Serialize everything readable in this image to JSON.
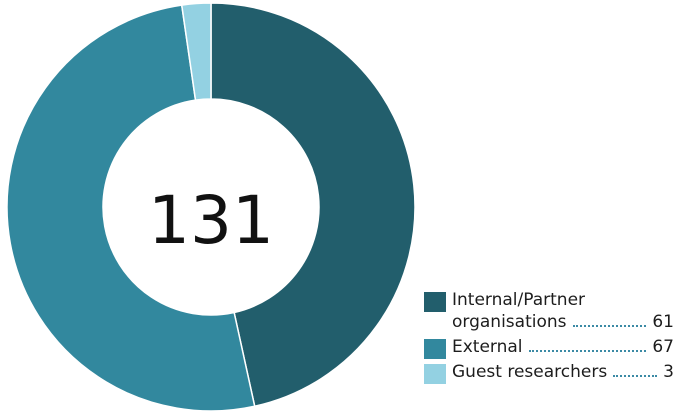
{
  "chart_data": {
    "type": "pie",
    "variant": "donut",
    "center_label": "131",
    "slices": [
      {
        "label_lines": [
          "Internal/Partner",
          "organisations"
        ],
        "value": 61,
        "color": "#225e6c"
      },
      {
        "label_lines": [
          "External"
        ],
        "value": 67,
        "color": "#32889e"
      },
      {
        "label_lines": [
          "Guest researchers"
        ],
        "value": 3,
        "color": "#93d1e2"
      }
    ],
    "legend_position": "bottom-right"
  }
}
